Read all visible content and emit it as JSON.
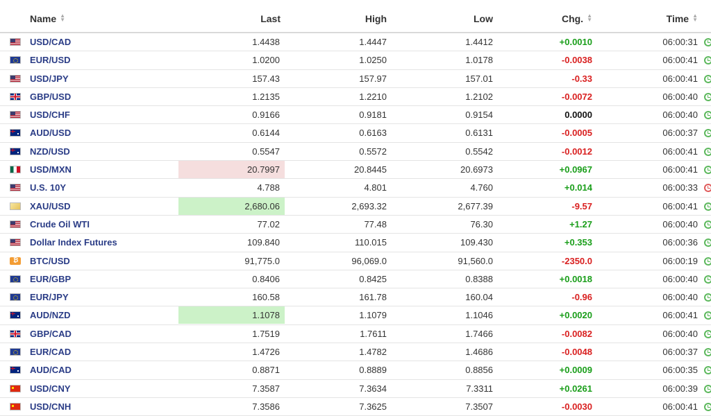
{
  "header": {
    "name": "Name",
    "last": "Last",
    "high": "High",
    "low": "Low",
    "chg": "Chg.",
    "time": "Time"
  },
  "colors": {
    "positive": "#1a9e1a",
    "negative": "#d92020",
    "link": "#2a3c86",
    "highlight_red": "#f5dede",
    "highlight_green": "#ccf2c8"
  },
  "rows": [
    {
      "name": "USD/CAD",
      "flag": "us",
      "last": "1.4438",
      "high": "1.4447",
      "low": "1.4412",
      "chg": "+0.0010",
      "dir": "pos",
      "time": "06:00:31",
      "clock": "green",
      "hl": ""
    },
    {
      "name": "EUR/USD",
      "flag": "eu",
      "last": "1.0200",
      "high": "1.0250",
      "low": "1.0178",
      "chg": "-0.0038",
      "dir": "neg",
      "time": "06:00:41",
      "clock": "green",
      "hl": ""
    },
    {
      "name": "USD/JPY",
      "flag": "us",
      "last": "157.43",
      "high": "157.97",
      "low": "157.01",
      "chg": "-0.33",
      "dir": "neg",
      "time": "06:00:41",
      "clock": "green",
      "hl": ""
    },
    {
      "name": "GBP/USD",
      "flag": "gb",
      "last": "1.2135",
      "high": "1.2210",
      "low": "1.2102",
      "chg": "-0.0072",
      "dir": "neg",
      "time": "06:00:40",
      "clock": "green",
      "hl": ""
    },
    {
      "name": "USD/CHF",
      "flag": "us",
      "last": "0.9166",
      "high": "0.9181",
      "low": "0.9154",
      "chg": "0.0000",
      "dir": "zero",
      "time": "06:00:40",
      "clock": "green",
      "hl": ""
    },
    {
      "name": "AUD/USD",
      "flag": "au",
      "last": "0.6144",
      "high": "0.6163",
      "low": "0.6131",
      "chg": "-0.0005",
      "dir": "neg",
      "time": "06:00:37",
      "clock": "green",
      "hl": ""
    },
    {
      "name": "NZD/USD",
      "flag": "au",
      "last": "0.5547",
      "high": "0.5572",
      "low": "0.5542",
      "chg": "-0.0012",
      "dir": "neg",
      "time": "06:00:41",
      "clock": "green",
      "hl": ""
    },
    {
      "name": "USD/MXN",
      "flag": "mx",
      "last": "20.7997",
      "high": "20.8445",
      "low": "20.6973",
      "chg": "+0.0967",
      "dir": "pos",
      "time": "06:00:41",
      "clock": "green",
      "hl": "red"
    },
    {
      "name": "U.S. 10Y",
      "flag": "us",
      "last": "4.788",
      "high": "4.801",
      "low": "4.760",
      "chg": "+0.014",
      "dir": "pos",
      "time": "06:00:33",
      "clock": "red",
      "hl": ""
    },
    {
      "name": "XAU/USD",
      "flag": "gold",
      "last": "2,680.06",
      "high": "2,693.32",
      "low": "2,677.39",
      "chg": "-9.57",
      "dir": "neg",
      "time": "06:00:41",
      "clock": "green",
      "hl": "green"
    },
    {
      "name": "Crude Oil WTI",
      "flag": "us",
      "last": "77.02",
      "high": "77.48",
      "low": "76.30",
      "chg": "+1.27",
      "dir": "pos",
      "time": "06:00:40",
      "clock": "green",
      "hl": ""
    },
    {
      "name": "Dollar Index Futures",
      "flag": "us",
      "last": "109.840",
      "high": "110.015",
      "low": "109.430",
      "chg": "+0.353",
      "dir": "pos",
      "time": "06:00:36",
      "clock": "green",
      "hl": ""
    },
    {
      "name": "BTC/USD",
      "flag": "btc",
      "last": "91,775.0",
      "high": "96,069.0",
      "low": "91,560.0",
      "chg": "-2350.0",
      "dir": "neg",
      "time": "06:00:19",
      "clock": "green",
      "hl": ""
    },
    {
      "name": "EUR/GBP",
      "flag": "eu",
      "last": "0.8406",
      "high": "0.8425",
      "low": "0.8388",
      "chg": "+0.0018",
      "dir": "pos",
      "time": "06:00:40",
      "clock": "green",
      "hl": ""
    },
    {
      "name": "EUR/JPY",
      "flag": "eu",
      "last": "160.58",
      "high": "161.78",
      "low": "160.04",
      "chg": "-0.96",
      "dir": "neg",
      "time": "06:00:40",
      "clock": "green",
      "hl": ""
    },
    {
      "name": "AUD/NZD",
      "flag": "au",
      "last": "1.1078",
      "high": "1.1079",
      "low": "1.1046",
      "chg": "+0.0020",
      "dir": "pos",
      "time": "06:00:41",
      "clock": "green",
      "hl": "green"
    },
    {
      "name": "GBP/CAD",
      "flag": "gb",
      "last": "1.7519",
      "high": "1.7611",
      "low": "1.7466",
      "chg": "-0.0082",
      "dir": "neg",
      "time": "06:00:40",
      "clock": "green",
      "hl": ""
    },
    {
      "name": "EUR/CAD",
      "flag": "eu",
      "last": "1.4726",
      "high": "1.4782",
      "low": "1.4686",
      "chg": "-0.0048",
      "dir": "neg",
      "time": "06:00:37",
      "clock": "green",
      "hl": ""
    },
    {
      "name": "AUD/CAD",
      "flag": "au",
      "last": "0.8871",
      "high": "0.8889",
      "low": "0.8856",
      "chg": "+0.0009",
      "dir": "pos",
      "time": "06:00:35",
      "clock": "green",
      "hl": ""
    },
    {
      "name": "USD/CNY",
      "flag": "cn",
      "last": "7.3587",
      "high": "7.3634",
      "low": "7.3311",
      "chg": "+0.0261",
      "dir": "pos",
      "time": "06:00:39",
      "clock": "green",
      "hl": ""
    },
    {
      "name": "USD/CNH",
      "flag": "cn",
      "last": "7.3586",
      "high": "7.3625",
      "low": "7.3507",
      "chg": "-0.0030",
      "dir": "neg",
      "time": "06:00:41",
      "clock": "green",
      "hl": ""
    }
  ]
}
